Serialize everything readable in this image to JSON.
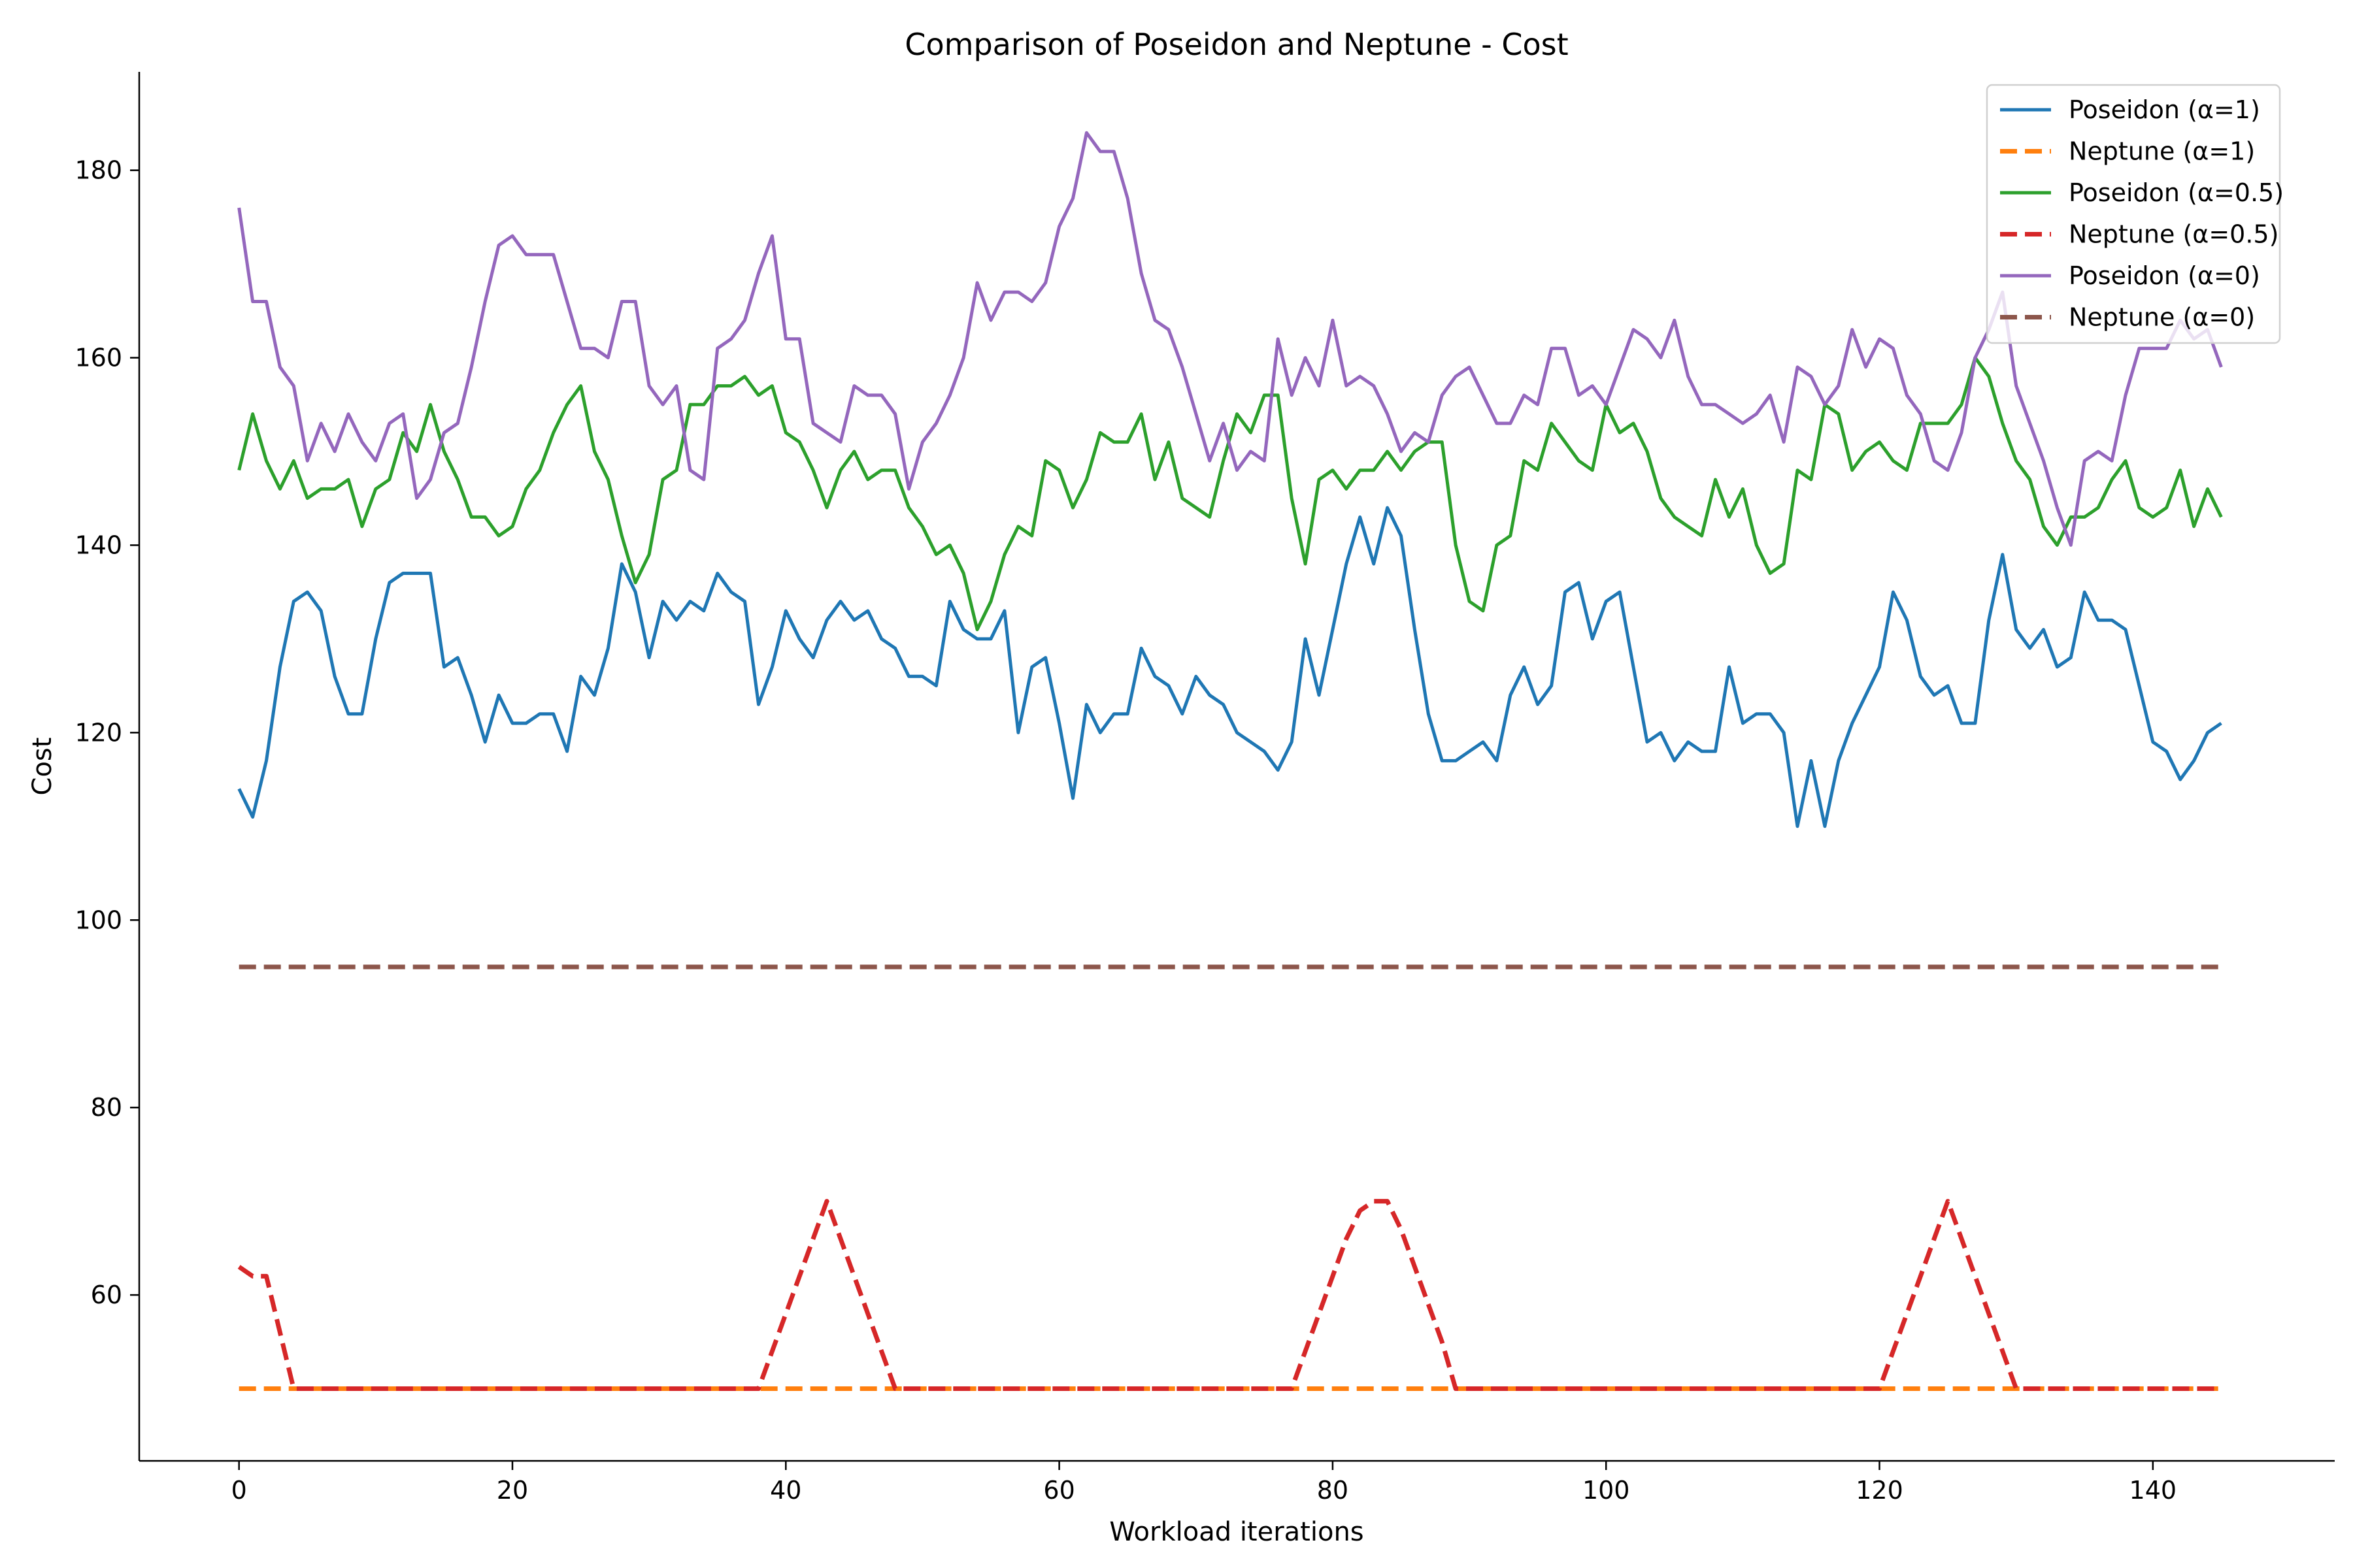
{
  "chart_data": {
    "type": "line",
    "title": "Comparison of Poseidon and Neptune - Cost",
    "xlabel": "Workload iterations",
    "ylabel": "Cost",
    "xlim": [
      -7.3,
      153.3
    ],
    "ylim": [
      42.3,
      190.5
    ],
    "xticks": [
      0,
      20,
      40,
      60,
      80,
      100,
      120,
      140
    ],
    "yticks": [
      60,
      80,
      100,
      120,
      140,
      160,
      180
    ],
    "grid": false,
    "legend_position": "top-right",
    "series": [
      {
        "name": "Poseidon (α=1)",
        "color": "#1f77b4",
        "dash": "solid",
        "values": [
          114,
          111,
          117,
          127,
          134,
          135,
          133,
          126,
          122,
          122,
          130,
          136,
          137,
          137,
          137,
          127,
          128,
          124,
          119,
          124,
          121,
          121,
          122,
          122,
          118,
          126,
          124,
          129,
          138,
          135,
          128,
          134,
          132,
          134,
          133,
          137,
          135,
          134,
          123,
          127,
          133,
          130,
          128,
          132,
          134,
          132,
          133,
          130,
          129,
          126,
          126,
          125,
          134,
          131,
          130,
          130,
          133,
          120,
          127,
          128,
          121,
          113,
          123,
          120,
          122,
          122,
          129,
          126,
          125,
          122,
          126,
          124,
          123,
          120,
          119,
          118,
          116,
          119,
          130,
          124,
          131,
          138,
          143,
          138,
          144,
          141,
          131,
          122,
          117,
          117,
          118,
          119,
          117,
          124,
          127,
          123,
          125,
          135,
          136,
          130,
          134,
          135,
          127,
          119,
          120,
          117,
          119,
          118,
          118,
          127,
          121,
          122,
          122,
          120,
          110,
          117,
          110,
          117,
          121,
          124,
          127,
          135,
          132,
          126,
          124,
          125,
          121,
          121,
          132,
          139,
          131,
          129,
          131,
          127,
          128,
          135,
          132,
          132,
          131,
          125,
          119,
          118,
          115,
          117,
          120,
          121
        ]
      },
      {
        "name": "Neptune (α=1)",
        "color": "#ff7f0e",
        "dash": "dashed",
        "values": [
          50,
          50,
          50,
          50,
          50,
          50,
          50,
          50,
          50,
          50,
          50,
          50,
          50,
          50,
          50,
          50,
          50,
          50,
          50,
          50,
          50,
          50,
          50,
          50,
          50,
          50,
          50,
          50,
          50,
          50,
          50,
          50,
          50,
          50,
          50,
          50,
          50,
          50,
          50,
          50,
          50,
          50,
          50,
          50,
          50,
          50,
          50,
          50,
          50,
          50,
          50,
          50,
          50,
          50,
          50,
          50,
          50,
          50,
          50,
          50,
          50,
          50,
          50,
          50,
          50,
          50,
          50,
          50,
          50,
          50,
          50,
          50,
          50,
          50,
          50,
          50,
          50,
          50,
          50,
          50,
          50,
          50,
          50,
          50,
          50,
          50,
          50,
          50,
          50,
          50,
          50,
          50,
          50,
          50,
          50,
          50,
          50,
          50,
          50,
          50,
          50,
          50,
          50,
          50,
          50,
          50,
          50,
          50,
          50,
          50,
          50,
          50,
          50,
          50,
          50,
          50,
          50,
          50,
          50,
          50,
          50,
          50,
          50,
          50,
          50,
          50,
          50,
          50,
          50,
          50,
          50,
          50,
          50,
          50,
          50,
          50,
          50,
          50,
          50,
          50,
          50,
          50,
          50,
          50,
          50,
          50
        ]
      },
      {
        "name": "Poseidon (α=0.5)",
        "color": "#2ca02c",
        "dash": "solid",
        "values": [
          148,
          154,
          149,
          146,
          149,
          145,
          146,
          146,
          147,
          142,
          146,
          147,
          152,
          150,
          155,
          150,
          147,
          143,
          143,
          141,
          142,
          146,
          148,
          152,
          155,
          157,
          150,
          147,
          141,
          136,
          139,
          147,
          148,
          155,
          155,
          157,
          157,
          158,
          156,
          157,
          152,
          151,
          148,
          144,
          148,
          150,
          147,
          148,
          148,
          144,
          142,
          139,
          140,
          137,
          131,
          134,
          139,
          142,
          141,
          149,
          148,
          144,
          147,
          152,
          151,
          151,
          154,
          147,
          151,
          145,
          144,
          143,
          149,
          154,
          152,
          156,
          156,
          145,
          138,
          147,
          148,
          146,
          148,
          148,
          150,
          148,
          150,
          151,
          151,
          140,
          134,
          133,
          140,
          141,
          149,
          148,
          153,
          151,
          149,
          148,
          155,
          152,
          153,
          150,
          145,
          143,
          142,
          141,
          147,
          143,
          146,
          140,
          137,
          138,
          148,
          147,
          155,
          154,
          148,
          150,
          151,
          149,
          148,
          153,
          153,
          153,
          155,
          160,
          158,
          153,
          149,
          147,
          142,
          140,
          143,
          143,
          144,
          147,
          149,
          144,
          143,
          144,
          148,
          142,
          146,
          143
        ]
      },
      {
        "name": "Neptune (α=0.5)",
        "color": "#d62728",
        "dash": "dashed",
        "values": [
          63,
          62,
          62,
          56,
          50,
          50,
          50,
          50,
          50,
          50,
          50,
          50,
          50,
          50,
          50,
          50,
          50,
          50,
          50,
          50,
          50,
          50,
          50,
          50,
          50,
          50,
          50,
          50,
          50,
          50,
          50,
          50,
          50,
          50,
          50,
          50,
          50,
          50,
          50,
          54,
          58,
          62,
          66,
          70,
          66,
          62,
          58,
          54,
          50,
          50,
          50,
          50,
          50,
          50,
          50,
          50,
          50,
          50,
          50,
          50,
          50,
          50,
          50,
          50,
          50,
          50,
          50,
          50,
          50,
          50,
          50,
          50,
          50,
          50,
          50,
          50,
          50,
          50,
          54,
          58,
          62,
          66,
          69,
          70,
          70,
          67,
          63,
          59,
          55,
          50,
          50,
          50,
          50,
          50,
          50,
          50,
          50,
          50,
          50,
          50,
          50,
          50,
          50,
          50,
          50,
          50,
          50,
          50,
          50,
          50,
          50,
          50,
          50,
          50,
          50,
          50,
          50,
          50,
          50,
          50,
          50,
          54,
          58,
          62,
          66,
          70,
          66,
          62,
          58,
          54,
          50,
          50,
          50,
          50,
          50,
          50,
          50,
          50,
          50,
          50,
          50,
          50,
          50,
          50,
          50,
          50
        ]
      },
      {
        "name": "Poseidon (α=0)",
        "color": "#9467bd",
        "dash": "solid",
        "values": [
          176,
          166,
          166,
          159,
          157,
          149,
          153,
          150,
          154,
          151,
          149,
          153,
          154,
          145,
          147,
          152,
          153,
          159,
          166,
          172,
          173,
          171,
          171,
          171,
          166,
          161,
          161,
          160,
          166,
          166,
          157,
          155,
          157,
          148,
          147,
          161,
          162,
          164,
          169,
          173,
          162,
          162,
          153,
          152,
          151,
          157,
          156,
          156,
          154,
          146,
          151,
          153,
          156,
          160,
          168,
          164,
          167,
          167,
          166,
          168,
          174,
          177,
          184,
          182,
          182,
          177,
          169,
          164,
          163,
          159,
          154,
          149,
          153,
          148,
          150,
          149,
          162,
          156,
          160,
          157,
          164,
          157,
          158,
          157,
          154,
          150,
          152,
          151,
          156,
          158,
          159,
          156,
          153,
          153,
          156,
          155,
          161,
          161,
          156,
          157,
          155,
          159,
          163,
          162,
          160,
          164,
          158,
          155,
          155,
          154,
          153,
          154,
          156,
          151,
          159,
          158,
          155,
          157,
          163,
          159,
          162,
          161,
          156,
          154,
          149,
          148,
          152,
          160,
          163,
          167,
          157,
          153,
          149,
          144,
          140,
          149,
          150,
          149,
          156,
          161,
          161,
          161,
          164,
          162,
          163,
          159
        ]
      },
      {
        "name": "Neptune (α=0)",
        "color": "#8c564b",
        "dash": "dashed",
        "values": [
          95,
          95,
          95,
          95,
          95,
          95,
          95,
          95,
          95,
          95,
          95,
          95,
          95,
          95,
          95,
          95,
          95,
          95,
          95,
          95,
          95,
          95,
          95,
          95,
          95,
          95,
          95,
          95,
          95,
          95,
          95,
          95,
          95,
          95,
          95,
          95,
          95,
          95,
          95,
          95,
          95,
          95,
          95,
          95,
          95,
          95,
          95,
          95,
          95,
          95,
          95,
          95,
          95,
          95,
          95,
          95,
          95,
          95,
          95,
          95,
          95,
          95,
          95,
          95,
          95,
          95,
          95,
          95,
          95,
          95,
          95,
          95,
          95,
          95,
          95,
          95,
          95,
          95,
          95,
          95,
          95,
          95,
          95,
          95,
          95,
          95,
          95,
          95,
          95,
          95,
          95,
          95,
          95,
          95,
          95,
          95,
          95,
          95,
          95,
          95,
          95,
          95,
          95,
          95,
          95,
          95,
          95,
          95,
          95,
          95,
          95,
          95,
          95,
          95,
          95,
          95,
          95,
          95,
          95,
          95,
          95,
          95,
          95,
          95,
          95,
          95,
          95,
          95,
          95,
          95,
          95,
          95,
          95,
          95,
          95,
          95,
          95,
          95,
          95,
          95,
          95,
          95,
          95,
          95,
          95,
          95
        ]
      }
    ]
  }
}
